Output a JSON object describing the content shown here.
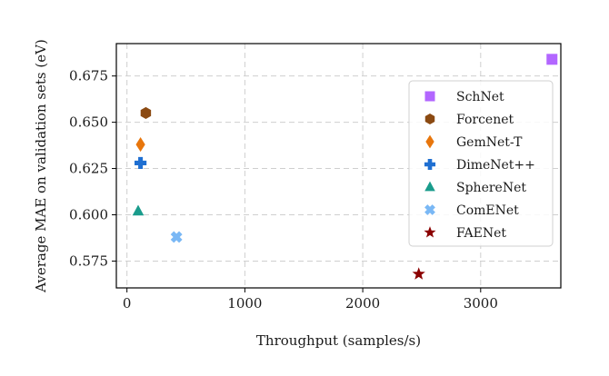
{
  "chart_data": {
    "type": "scatter",
    "title": "",
    "xlabel": "Throughput (samples/s)",
    "ylabel": "Average MAE on validation sets (eV)",
    "xlim": [
      -90,
      3680
    ],
    "ylim": [
      0.5605,
      0.6925
    ],
    "xticks": [
      0,
      1000,
      2000,
      3000
    ],
    "yticks": [
      0.575,
      0.6,
      0.625,
      0.65,
      0.675
    ],
    "xtick_labels": [
      "0",
      "1000",
      "2000",
      "3000"
    ],
    "ytick_labels": [
      "0.575",
      "0.600",
      "0.625",
      "0.650",
      "0.675"
    ],
    "grid": true,
    "legend_position": "right",
    "series": [
      {
        "name": "SchNet",
        "marker": "square",
        "color": "#b266ff",
        "x": 3605,
        "y": 0.684
      },
      {
        "name": "Forcenet",
        "marker": "hexagon",
        "color": "#8b4a12",
        "x": 160,
        "y": 0.655
      },
      {
        "name": "GemNet-T",
        "marker": "diamond",
        "color": "#e8760c",
        "x": 115,
        "y": 0.638
      },
      {
        "name": "DimeNet++",
        "marker": "plus",
        "color": "#1f6fd1",
        "x": 115,
        "y": 0.628
      },
      {
        "name": "SphereNet",
        "marker": "triangle",
        "color": "#1a9c8c",
        "x": 95,
        "y": 0.602
      },
      {
        "name": "ComENet",
        "marker": "x",
        "color": "#7ab8f5",
        "x": 420,
        "y": 0.588
      },
      {
        "name": "FAENet",
        "marker": "star",
        "color": "#8b0000",
        "x": 2475,
        "y": 0.568
      }
    ]
  }
}
